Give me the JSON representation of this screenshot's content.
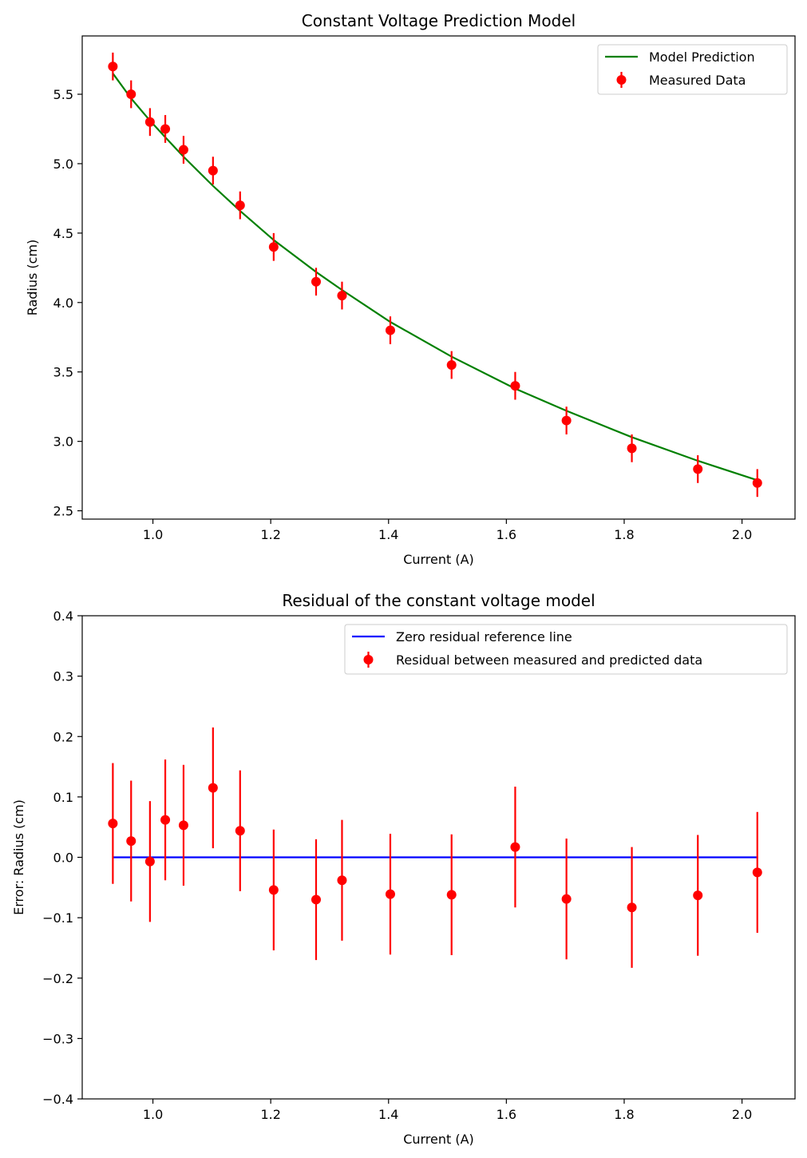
{
  "chart_data": [
    {
      "type": "line",
      "title": "Constant Voltage Prediction Model",
      "xlabel": "Current (A)",
      "ylabel": "Radius (cm)",
      "xlim": [
        0.88,
        2.09
      ],
      "ylim": [
        2.44,
        5.92
      ],
      "xticks": [
        1.0,
        1.2,
        1.4,
        1.6,
        1.8,
        2.0
      ],
      "xtick_labels": [
        "1.0",
        "1.2",
        "1.4",
        "1.6",
        "1.8",
        "2.0"
      ],
      "yticks": [
        2.5,
        3.0,
        3.5,
        4.0,
        4.5,
        5.0,
        5.5
      ],
      "ytick_labels": [
        "2.5",
        "3.0",
        "3.5",
        "4.0",
        "4.5",
        "5.0",
        "5.5"
      ],
      "legend_position": "top-right",
      "series": [
        {
          "name": "Model Prediction",
          "kind": "line",
          "color": "#008000",
          "x": [
            0.932,
            0.963,
            0.995,
            1.021,
            1.052,
            1.102,
            1.148,
            1.205,
            1.277,
            1.321,
            1.403,
            1.507,
            1.615,
            1.702,
            1.813,
            1.925,
            2.026
          ],
          "y": [
            5.65,
            5.47,
            5.31,
            5.19,
            5.05,
            4.84,
            4.66,
            4.45,
            4.22,
            4.09,
            3.86,
            3.61,
            3.38,
            3.22,
            3.03,
            2.86,
            2.72
          ]
        },
        {
          "name": "Measured Data",
          "kind": "errorbar",
          "color": "#ff0000",
          "x": [
            0.932,
            0.963,
            0.995,
            1.021,
            1.052,
            1.102,
            1.148,
            1.205,
            1.277,
            1.321,
            1.403,
            1.507,
            1.615,
            1.702,
            1.813,
            1.925,
            2.026
          ],
          "y": [
            5.7,
            5.5,
            5.3,
            5.25,
            5.1,
            4.95,
            4.7,
            4.4,
            4.15,
            4.05,
            3.8,
            3.55,
            3.4,
            3.15,
            2.95,
            2.8,
            2.7
          ],
          "yerr": 0.1
        }
      ]
    },
    {
      "type": "scatter",
      "title": "Residual of the constant voltage model",
      "xlabel": "Current (A)",
      "ylabel": "Error: Radius (cm)",
      "xlim": [
        0.88,
        2.09
      ],
      "ylim": [
        -0.4,
        0.4
      ],
      "xticks": [
        1.0,
        1.2,
        1.4,
        1.6,
        1.8,
        2.0
      ],
      "xtick_labels": [
        "1.0",
        "1.2",
        "1.4",
        "1.6",
        "1.8",
        "2.0"
      ],
      "yticks": [
        -0.4,
        -0.3,
        -0.2,
        -0.1,
        0.0,
        0.1,
        0.2,
        0.3,
        0.4
      ],
      "ytick_labels": [
        "−0.4",
        "−0.3",
        "−0.2",
        "−0.1",
        "0.0",
        "0.1",
        "0.2",
        "0.3",
        "0.4"
      ],
      "legend_position": "top-right",
      "series": [
        {
          "name": "Zero residual reference line",
          "kind": "line",
          "color": "#0000ff",
          "x": [
            0.932,
            2.026
          ],
          "y": [
            0.0,
            0.0
          ]
        },
        {
          "name": "Residual between measured and predicted data",
          "kind": "errorbar",
          "color": "#ff0000",
          "x": [
            0.932,
            0.963,
            0.995,
            1.021,
            1.052,
            1.102,
            1.148,
            1.205,
            1.277,
            1.321,
            1.403,
            1.507,
            1.615,
            1.702,
            1.813,
            1.925,
            2.026
          ],
          "y": [
            0.056,
            0.027,
            -0.007,
            0.062,
            0.053,
            0.115,
            0.044,
            -0.054,
            -0.07,
            -0.038,
            -0.061,
            -0.062,
            0.017,
            -0.069,
            -0.083,
            -0.063,
            -0.025
          ],
          "yerr": 0.1
        }
      ]
    }
  ]
}
